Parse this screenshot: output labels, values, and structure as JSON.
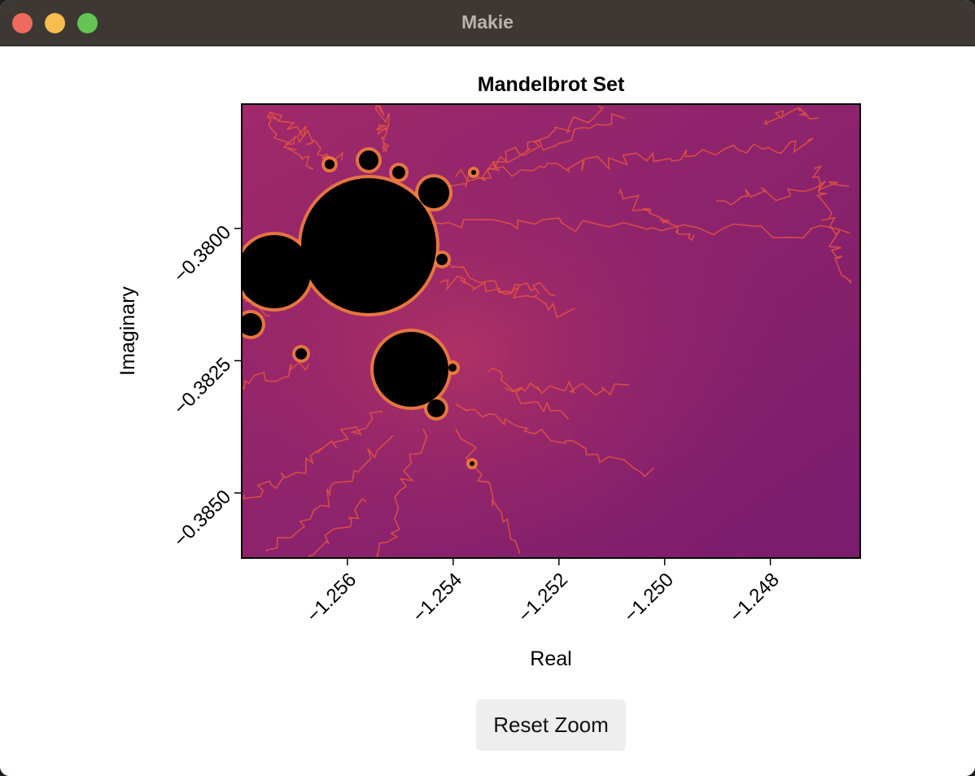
{
  "window": {
    "title": "Makie"
  },
  "chart_data": {
    "type": "heatmap",
    "title": "Mandelbrot Set",
    "xlabel": "Real",
    "ylabel": "Imaginary",
    "xlim": [
      -1.258,
      -1.2463
    ],
    "ylim": [
      -0.38623,
      -0.37765
    ],
    "x_ticks": [
      -1.256,
      -1.254,
      -1.252,
      -1.25,
      -1.248
    ],
    "x_tick_labels": [
      "−1.256",
      "−1.254",
      "−1.252",
      "−1.250",
      "−1.248"
    ],
    "y_ticks": [
      -0.38,
      -0.3825,
      -0.385
    ],
    "y_tick_labels": [
      "−0.3800",
      "−0.3825",
      "−0.3850"
    ],
    "colormap": "inferno",
    "colormap_colors": [
      "#000004",
      "#57106e",
      "#bc3754",
      "#f98e09",
      "#fcffa4"
    ],
    "set_color": "#000000",
    "background_color": "#7f1d6e",
    "grid": false
  },
  "controls": {
    "reset_label": "Reset Zoom"
  }
}
